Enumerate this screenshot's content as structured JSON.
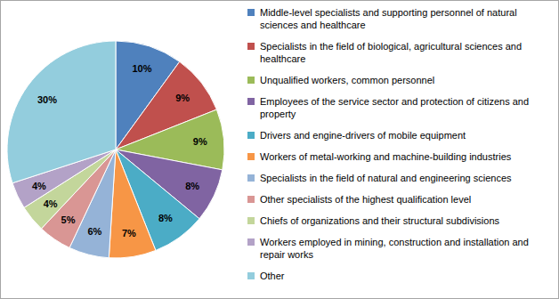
{
  "chart_data": {
    "type": "pie",
    "categories": [
      "Middle-level specialists and supporting personnel of natural sciences and healthcare",
      "Specialists in the field of biological, agricultural sciences and healthcare",
      "Unqualified workers, common personnel",
      "Employees of the service sector and protection of citizens and property",
      "Drivers and engine-drivers of mobile equipment",
      "Workers of metal-working and machine-building industries",
      "Specialists in the field of natural and engineering sciences",
      "Other specialists of the highest qualification level",
      "Chiefs of organizations and their structural subdivisions",
      "Workers employed in mining, construction and installation and repair works",
      "Other"
    ],
    "values": [
      10,
      9,
      9,
      8,
      8,
      7,
      6,
      5,
      4,
      4,
      30
    ],
    "value_labels": [
      "10%",
      "9%",
      "9%",
      "8%",
      "8%",
      "7%",
      "6%",
      "5%",
      "4%",
      "4%",
      "30%"
    ],
    "colors": [
      "#4f81bd",
      "#c0504d",
      "#9bbb59",
      "#8064a2",
      "#4bacc6",
      "#f79646",
      "#95b3d7",
      "#d99694",
      "#c3d69b",
      "#b3a2c7",
      "#93cddd"
    ],
    "data_labels": true,
    "legend": "right"
  }
}
